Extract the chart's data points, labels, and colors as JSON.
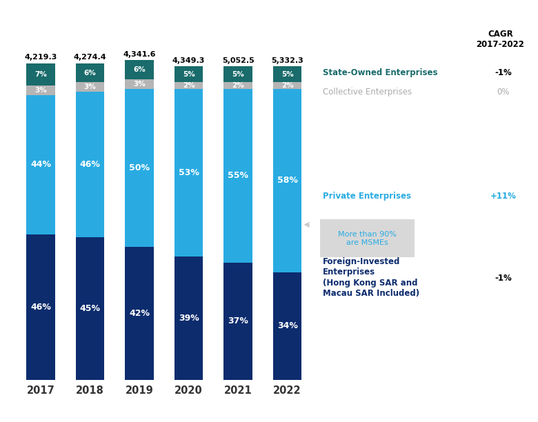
{
  "years": [
    "2017",
    "2018",
    "2019",
    "2020",
    "2021",
    "2022"
  ],
  "totals": [
    "4,219.3",
    "4,274.4",
    "4,341.6",
    "4,349.3",
    "5,052.5",
    "5,332.3"
  ],
  "foreign_invested": [
    46,
    45,
    42,
    39,
    37,
    34
  ],
  "private": [
    44,
    46,
    50,
    53,
    55,
    58
  ],
  "collective": [
    3,
    3,
    3,
    2,
    2,
    2
  ],
  "state_owned": [
    7,
    6,
    6,
    5,
    5,
    5
  ],
  "colors": {
    "foreign_invested": "#0d2c6e",
    "private": "#29abe2",
    "collective": "#b5b5b5",
    "state_owned": "#1a6b6b"
  },
  "legend_labels": {
    "state_owned": "State-Owned Enterprises",
    "collective": "Collective Enterprises",
    "private": "Private Enterprises",
    "foreign_invested_line1": "Foreign-Invested",
    "foreign_invested_line2": "Enterprises",
    "foreign_invested_line3": "(Hong Kong SAR and",
    "foreign_invested_line4": "Macau SAR Included)"
  },
  "cagr": {
    "state_owned": "-1%",
    "collective": "0%",
    "private": "+11%",
    "foreign_invested": "-1%"
  },
  "cagr_title": "CAGR\n2017-2022",
  "msme_note": "More than 90%\nare MSMEs",
  "background_color": "#ffffff"
}
